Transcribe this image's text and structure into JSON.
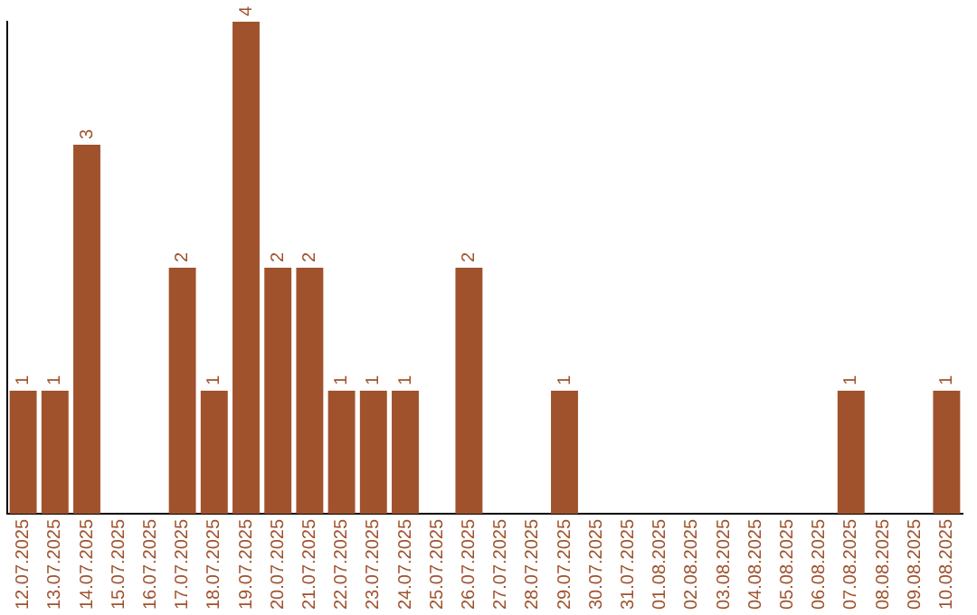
{
  "chart_data": {
    "type": "bar",
    "categories": [
      "12.07.2025",
      "13.07.2025",
      "14.07.2025",
      "15.07.2025",
      "16.07.2025",
      "17.07.2025",
      "18.07.2025",
      "19.07.2025",
      "20.07.2025",
      "21.07.2025",
      "22.07.2025",
      "23.07.2025",
      "24.07.2025",
      "25.07.2025",
      "26.07.2025",
      "27.07.2025",
      "28.07.2025",
      "29.07.2025",
      "30.07.2025",
      "31.07.2025",
      "01.08.2025",
      "02.08.2025",
      "03.08.2025",
      "04.08.2025",
      "05.08.2025",
      "06.08.2025",
      "07.08.2025",
      "08.08.2025",
      "09.08.2025",
      "10.08.2025"
    ],
    "values": [
      1,
      1,
      3,
      0,
      0,
      2,
      1,
      4,
      2,
      2,
      1,
      1,
      1,
      0,
      2,
      0,
      0,
      1,
      0,
      0,
      0,
      0,
      0,
      0,
      0,
      0,
      1,
      0,
      0,
      1
    ],
    "value_labels": [
      "1",
      "1",
      "3",
      null,
      null,
      "2",
      "1",
      "4",
      "2",
      "2",
      "1",
      "1",
      "1",
      null,
      "2",
      null,
      null,
      "1",
      null,
      null,
      null,
      null,
      null,
      null,
      null,
      null,
      "1",
      null,
      null,
      "1"
    ],
    "color": "#a0522d",
    "grid": false,
    "legend": false,
    "tick_labels": "x"
  }
}
